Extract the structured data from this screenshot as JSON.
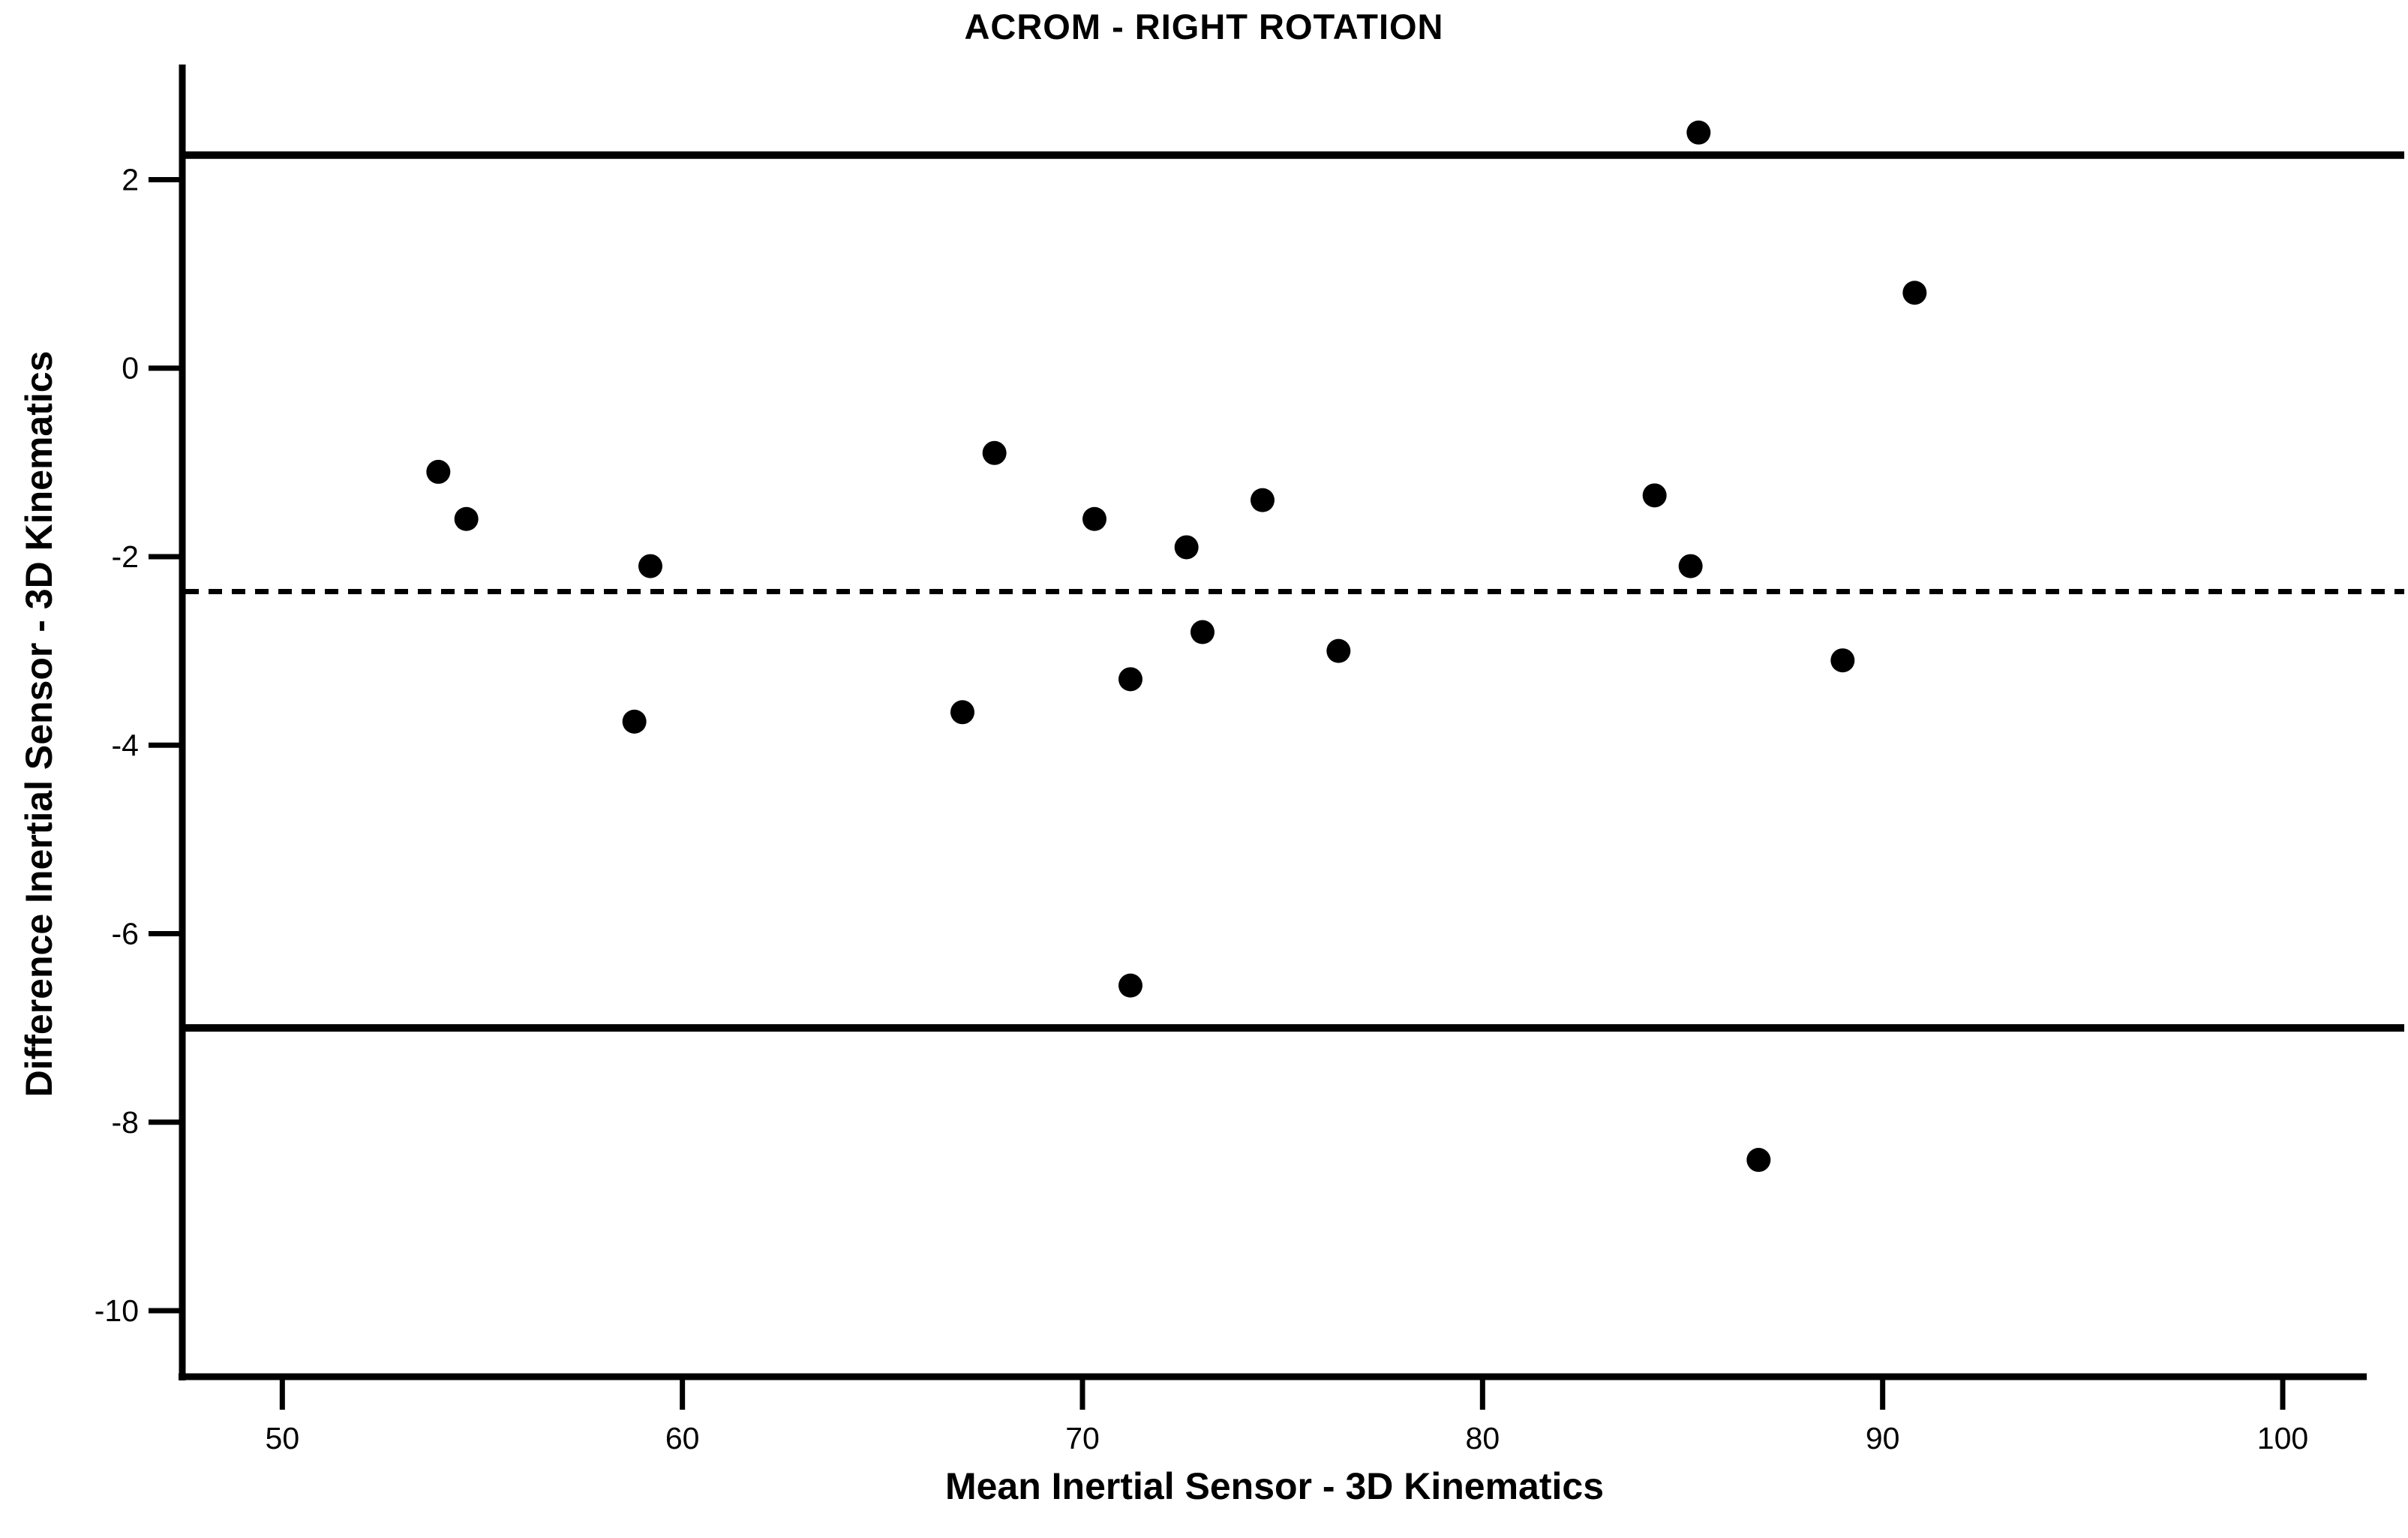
{
  "figure": {
    "background_color": "#ffffff",
    "foreground_color": "#000000"
  },
  "chart_data": {
    "type": "scatter",
    "title": "ACROM - RIGHT ROTATION",
    "xlabel": "Mean Inertial Sensor - 3D Kinematics",
    "ylabel": "Difference Inertial Sensor - 3D Kinematics",
    "xlim": [
      47.5,
      102.1
    ],
    "ylim": [
      -10.7,
      3.15
    ],
    "x_ticks": [
      50,
      60,
      70,
      80,
      90,
      100
    ],
    "y_ticks": [
      2,
      0,
      -2,
      -4,
      -6,
      -8,
      -10
    ],
    "grid": false,
    "legend": "none",
    "points": [
      [
        53.9,
        -1.1
      ],
      [
        54.6,
        -1.6
      ],
      [
        58.8,
        -3.75
      ],
      [
        59.2,
        -2.1
      ],
      [
        67.0,
        -3.65
      ],
      [
        67.8,
        -0.9
      ],
      [
        70.3,
        -1.6
      ],
      [
        71.2,
        -3.3
      ],
      [
        71.2,
        -6.55
      ],
      [
        72.6,
        -1.9
      ],
      [
        73.0,
        -2.8
      ],
      [
        74.5,
        -1.4
      ],
      [
        76.4,
        -3.0
      ],
      [
        84.3,
        -1.35
      ],
      [
        85.2,
        -2.1
      ],
      [
        85.4,
        2.5
      ],
      [
        86.9,
        -8.4
      ],
      [
        89.0,
        -3.1
      ],
      [
        90.8,
        0.8
      ]
    ],
    "reference_lines": {
      "upper_loa": 2.26,
      "mean": -2.37,
      "lower_loa": -7.0,
      "mean_style": "dashed",
      "loa_style": "solid"
    },
    "marker": {
      "shape": "circle",
      "radius_px": 16,
      "color": "#000000"
    }
  }
}
